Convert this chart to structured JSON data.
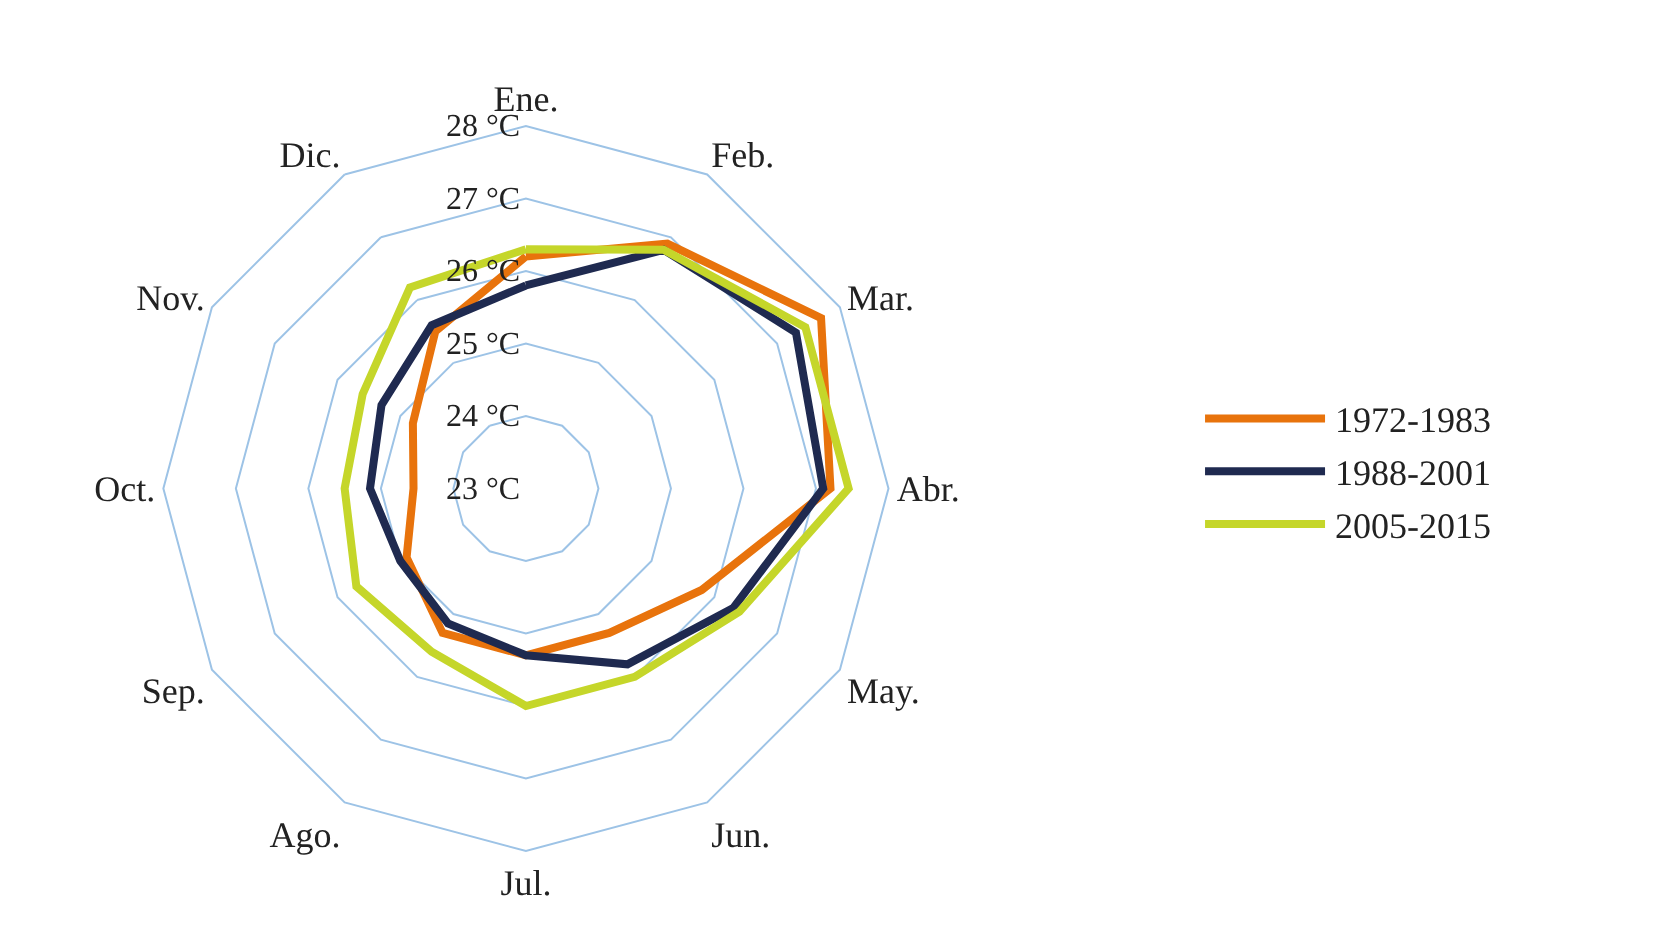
{
  "chart_data": {
    "type": "radar",
    "categories": [
      "Ene.",
      "Feb.",
      "Mar.",
      "Abr.",
      "May.",
      "Jun.",
      "Jul.",
      "Ago.",
      "Sep.",
      "Oct.",
      "Nov.",
      "Dic."
    ],
    "series": [
      {
        "name": "1972-1983",
        "color": "#e8730c",
        "values": [
          26.2,
          26.9,
          27.7,
          27.2,
          25.8,
          25.3,
          25.3,
          25.3,
          24.9,
          24.55,
          24.8,
          25.5
        ]
      },
      {
        "name": "1988-2001",
        "color": "#1f2a50",
        "values": [
          25.8,
          26.8,
          27.3,
          27.1,
          26.3,
          25.8,
          25.3,
          25.15,
          25.0,
          25.15,
          25.3,
          25.6
        ]
      },
      {
        "name": "2005-2015",
        "color": "#c5d62a",
        "values": [
          26.3,
          26.8,
          27.45,
          27.45,
          26.4,
          26.0,
          26.0,
          25.6,
          25.7,
          25.5,
          25.6,
          26.2
        ]
      }
    ],
    "ylim": [
      23,
      28
    ],
    "yticks": [
      {
        "value": 23,
        "label": "23 °C"
      },
      {
        "value": 24,
        "label": "24 °C"
      },
      {
        "value": 25,
        "label": "25 °C"
      },
      {
        "value": 26,
        "label": "26 °C"
      },
      {
        "value": 27,
        "label": "27 °C"
      },
      {
        "value": 28,
        "label": "28 °C"
      }
    ],
    "grid": true,
    "legend": "right",
    "marker": "none",
    "line_style": "solid"
  }
}
